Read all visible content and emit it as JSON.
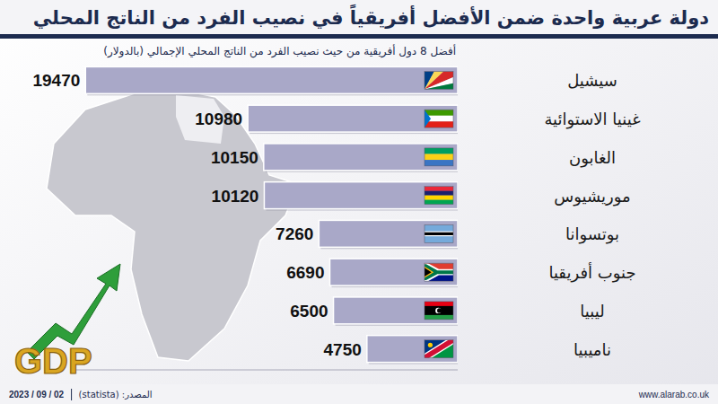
{
  "chart_data": {
    "type": "bar",
    "orientation": "horizontal",
    "title": "دولة عربية واحدة ضمن الأفضل أفريقياً في نصيب الفرد من الناتج المحلي",
    "subtitle": "أفضل 8 دول أفريقية من حيث نصيب الفرد من الناتج المحلي الإجمالي (بالدولار)",
    "categories": [
      "سيشيل",
      "غينيا الاستوائية",
      "الغابون",
      "موريشيوس",
      "بوتسوانا",
      "جنوب أفريقيا",
      "ليبيا",
      "ناميبيا"
    ],
    "values": [
      19470,
      10980,
      10150,
      10120,
      7260,
      6690,
      6500,
      4750
    ],
    "color": "#a9a8c8",
    "xlim": [
      0,
      20000
    ],
    "tick_labels": false,
    "grid": false,
    "data_labels": true,
    "annotations": [
      "GDP"
    ],
    "source": "المصدر: (statista)",
    "date": "2023 / 09 / 02",
    "website": "www.alarab.co.uk"
  }
}
